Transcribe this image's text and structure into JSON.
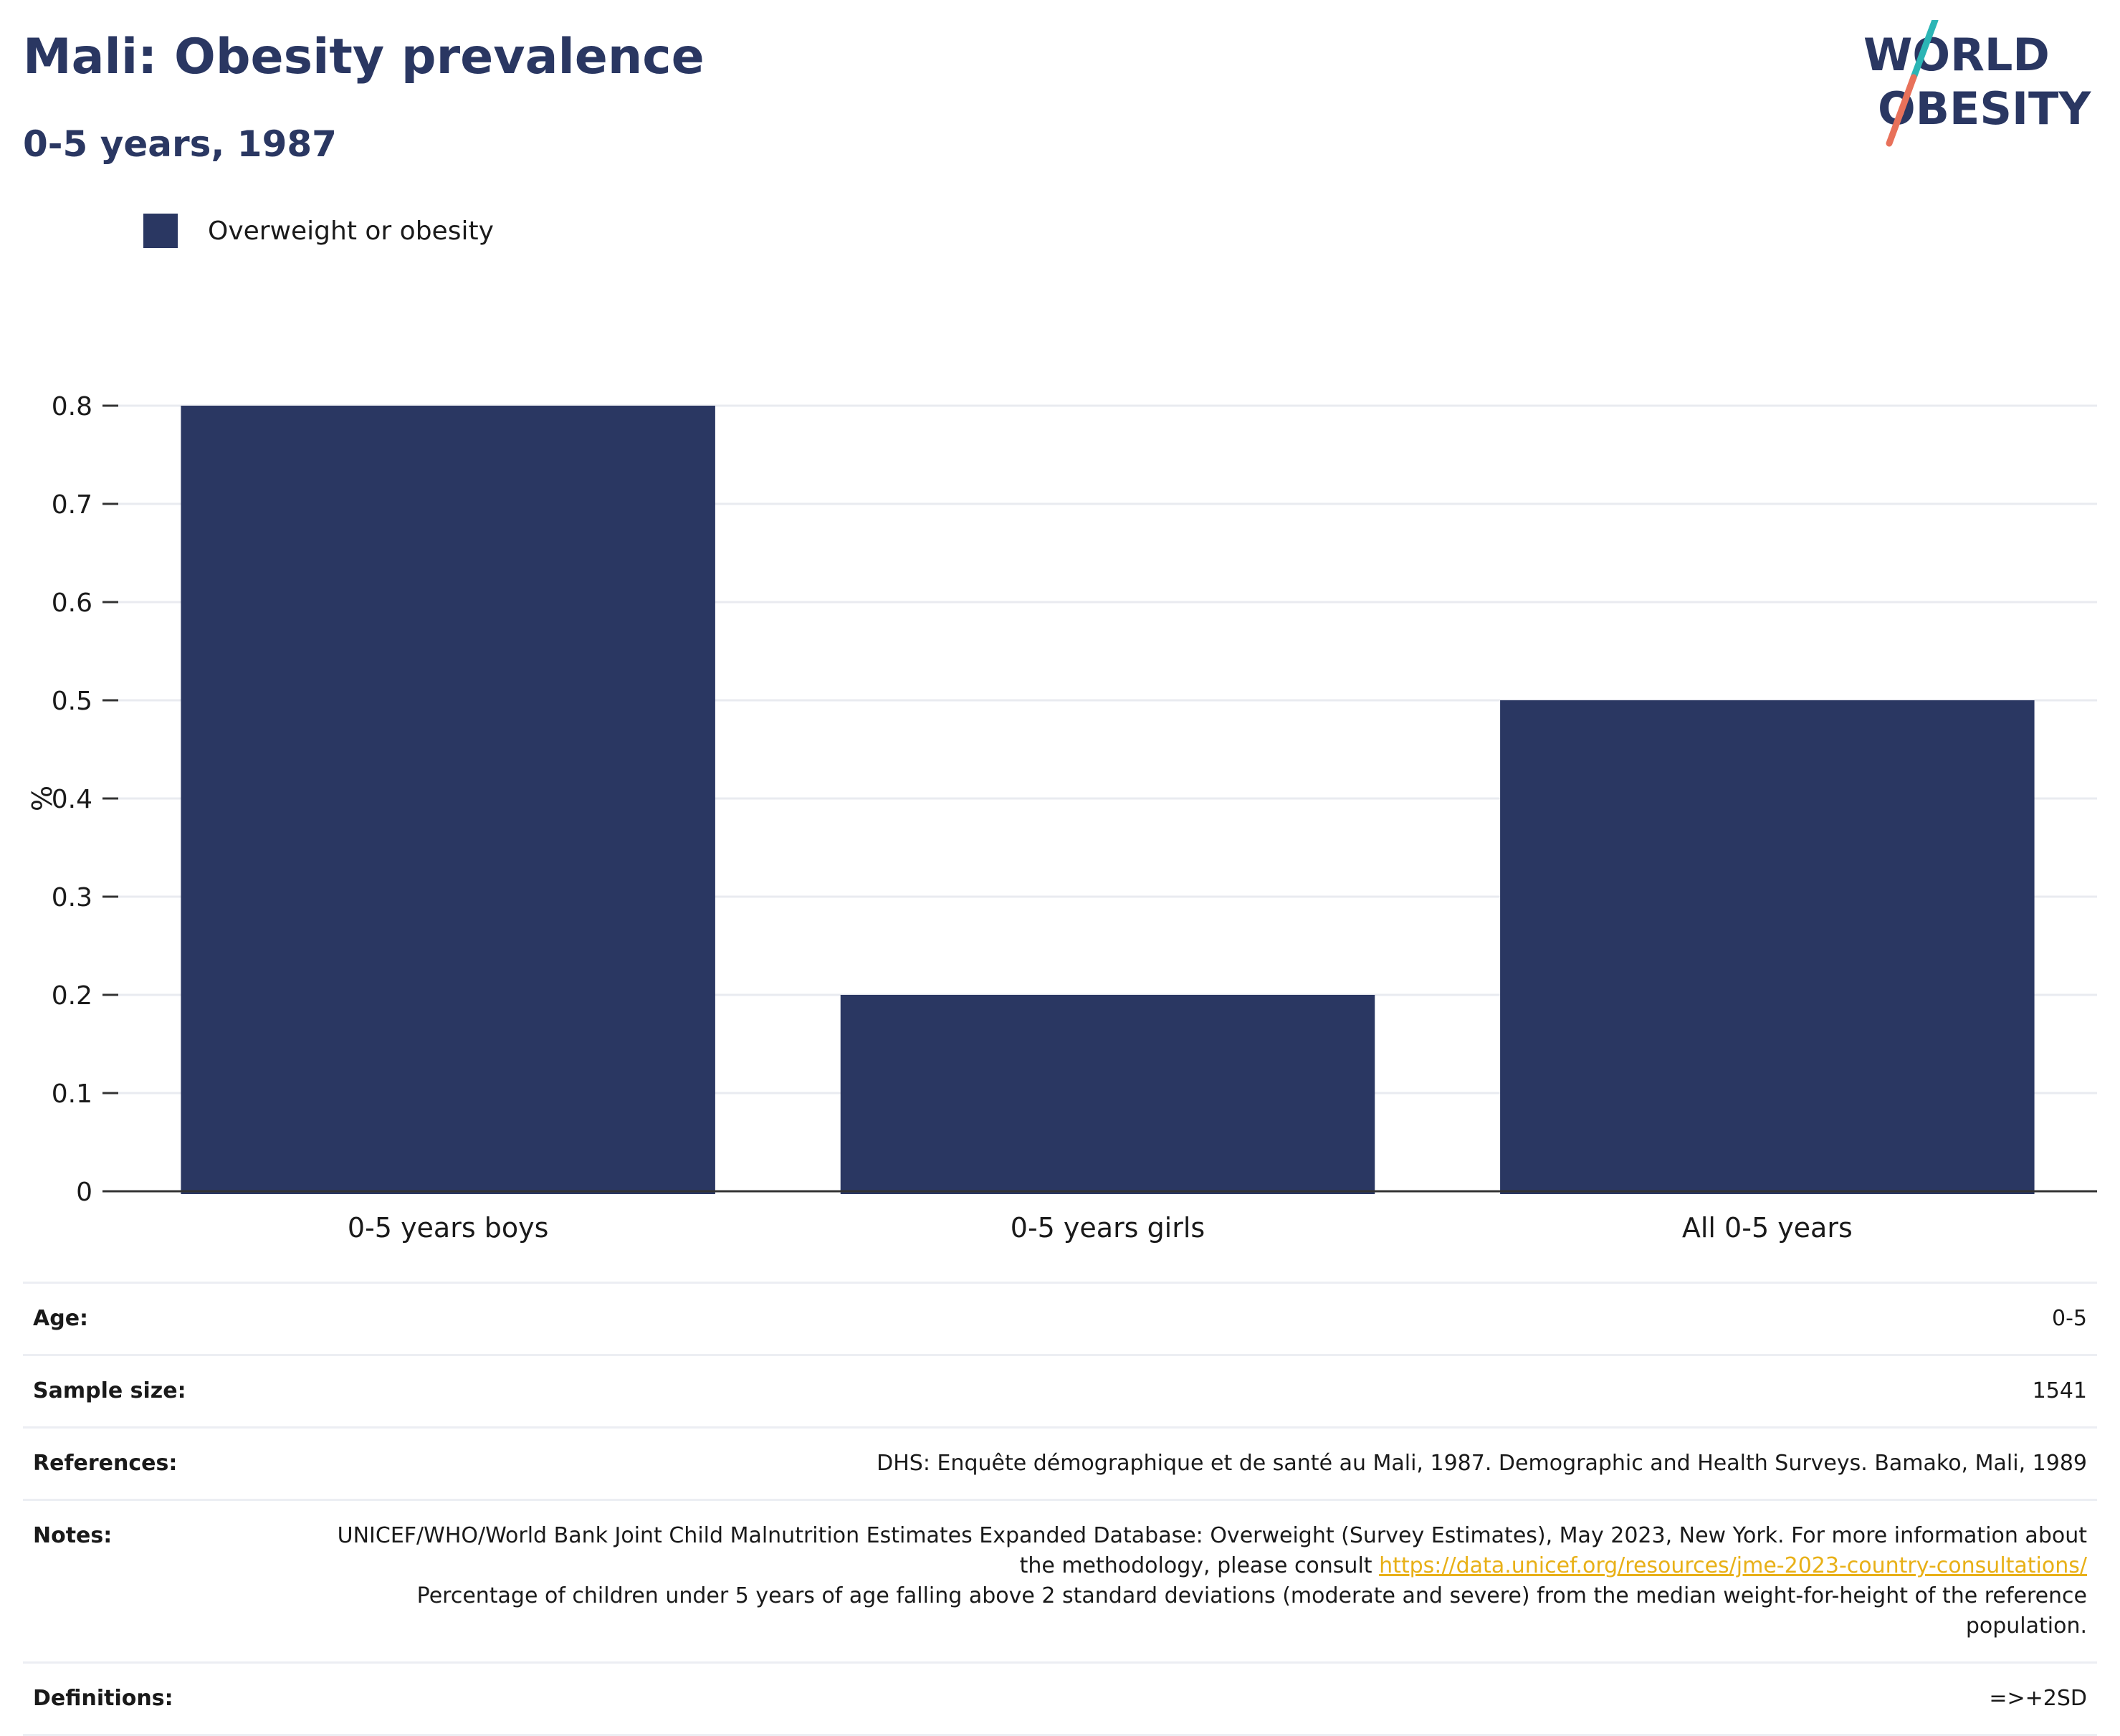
{
  "header": {
    "title": "Mali: Obesity prevalence",
    "subtitle": "0-5 years, 1987"
  },
  "logo": {
    "line1": "WORLD",
    "line2": "OBESITY",
    "colors": {
      "text": "#2a3762",
      "teal": "#2bb5b5",
      "coral": "#e8715a"
    }
  },
  "legend": {
    "label": "Overweight or obesity",
    "color": "#2a3762"
  },
  "chart_data": {
    "type": "bar",
    "categories": [
      "0-5 years boys",
      "0-5 years girls",
      "All 0-5 years"
    ],
    "series": [
      {
        "name": "Overweight or obesity",
        "values": [
          0.8,
          0.2,
          0.5
        ],
        "color": "#2a3762"
      }
    ],
    "ylabel": "%",
    "xlabel": "",
    "ylim": [
      0,
      0.8
    ],
    "yticks": [
      "0",
      "0.1",
      "0.2",
      "0.3",
      "0.4",
      "0.5",
      "0.6",
      "0.7",
      "0.8"
    ],
    "grid": true,
    "legend_position": "top-left"
  },
  "info": {
    "age": {
      "label": "Age:",
      "value": "0-5"
    },
    "sample_size": {
      "label": "Sample size:",
      "value": "1541"
    },
    "references": {
      "label": "References:",
      "value": "DHS: Enquête démographique et de santé au Mali, 1987. Demographic and Health Surveys. Bamako, Mali, 1989"
    },
    "notes": {
      "label": "Notes:",
      "text_before": "UNICEF/WHO/World Bank Joint Child Malnutrition Estimates Expanded Database: Overweight (Survey Estimates), May 2023, New York. For more information about the methodology, please consult",
      "link": "https://data.unicef.org/resources/jme-2023-country-consultations/",
      "text_after": "Percentage of children under 5 years of age falling above 2 standard deviations (moderate and severe) from the median weight-for-height of the reference population."
    },
    "definitions": {
      "label": "Definitions:",
      "value": "=>+2SD"
    }
  }
}
